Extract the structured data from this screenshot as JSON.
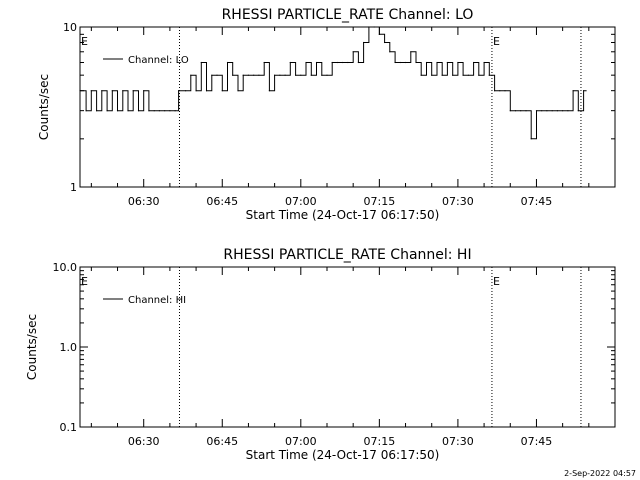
{
  "footer": {
    "date": "2-Sep-2022 04:57"
  },
  "chart_data": [
    {
      "type": "line",
      "title": "RHESSI PARTICLE_RATE Channel: LO",
      "xlabel": "Start Time (24-Oct-17 06:17:50)",
      "ylabel": "Counts/sec",
      "yscale": "log",
      "xlim": [
        "06:17:50",
        "08:00"
      ],
      "ylim": [
        1,
        10
      ],
      "x_ticks": [
        "06:30",
        "06:45",
        "07:00",
        "07:15",
        "07:30",
        "07:45"
      ],
      "y_ticks": [
        "1",
        "10"
      ],
      "legend": {
        "entries": [
          "Channel: LO"
        ],
        "position": "top-left"
      },
      "event_markers": [
        {
          "time": "06:36:50",
          "label": ""
        },
        {
          "time": "07:36:30",
          "label": "E"
        },
        {
          "time": "07:53:30",
          "label": ""
        }
      ],
      "start_marker": "E",
      "series": [
        {
          "name": "Channel: LO",
          "x": [
            "06:17:50",
            "06:19:00",
            "06:20:00",
            "06:21:00",
            "06:22:00",
            "06:23:00",
            "06:24:00",
            "06:25:00",
            "06:26:00",
            "06:27:00",
            "06:28:00",
            "06:29:00",
            "06:30:00",
            "06:31:00",
            "06:32:00",
            "06:33:00",
            "06:34:00",
            "06:35:00",
            "06:36:00",
            "06:36:40",
            "06:38:00",
            "06:39:00",
            "06:40:00",
            "06:41:00",
            "06:42:00",
            "06:43:00",
            "06:44:00",
            "06:45:00",
            "06:46:00",
            "06:47:00",
            "06:48:00",
            "06:49:00",
            "06:50:00",
            "06:51:00",
            "06:52:00",
            "06:53:00",
            "06:54:00",
            "06:55:00",
            "06:56:00",
            "06:57:00",
            "06:58:00",
            "06:59:00",
            "07:00:00",
            "07:01:00",
            "07:02:00",
            "07:03:00",
            "07:04:00",
            "07:05:00",
            "07:06:00",
            "07:07:00",
            "07:08:00",
            "07:09:00",
            "07:10:00",
            "07:11:00",
            "07:12:00",
            "07:13:00",
            "07:14:00",
            "07:15:00",
            "07:16:00",
            "07:17:00",
            "07:18:00",
            "07:19:00",
            "07:20:00",
            "07:21:00",
            "07:22:00",
            "07:23:00",
            "07:24:00",
            "07:25:00",
            "07:26:00",
            "07:27:00",
            "07:28:00",
            "07:29:00",
            "07:30:00",
            "07:31:00",
            "07:32:00",
            "07:33:00",
            "07:34:00",
            "07:35:00",
            "07:36:00",
            "07:37:00",
            "07:38:00",
            "07:39:00",
            "07:40:00",
            "07:41:00",
            "07:42:00",
            "07:43:00",
            "07:44:00",
            "07:45:00",
            "07:46:00",
            "07:47:00",
            "07:48:00",
            "07:49:00",
            "07:50:00",
            "07:51:00",
            "07:52:00",
            "07:53:00",
            "07:54:00"
          ],
          "values": [
            4,
            3,
            4,
            3,
            4,
            3,
            4,
            3,
            4,
            3,
            4,
            3,
            4,
            3,
            3,
            3,
            3,
            3,
            3,
            4,
            4,
            5,
            4,
            6,
            4,
            5,
            5,
            4,
            6,
            5,
            4,
            5,
            5,
            5,
            5,
            6,
            4,
            5,
            5,
            5,
            6,
            5,
            5,
            6,
            5,
            6,
            5,
            5,
            6,
            6,
            6,
            6,
            7,
            6,
            8,
            10,
            10,
            9,
            8,
            7,
            6,
            6,
            6,
            7,
            6,
            5,
            6,
            5,
            6,
            5,
            6,
            5,
            6,
            5,
            5,
            6,
            5,
            6,
            5,
            4,
            4,
            4,
            3,
            3,
            3,
            3,
            2,
            3,
            3,
            3,
            3,
            3,
            3,
            3,
            4,
            3,
            4
          ]
        }
      ]
    },
    {
      "type": "line",
      "title": "RHESSI PARTICLE_RATE Channel: HI",
      "xlabel": "Start Time (24-Oct-17 06:17:50)",
      "ylabel": "Counts/sec",
      "yscale": "log",
      "xlim": [
        "06:17:50",
        "08:00"
      ],
      "ylim": [
        0.1,
        10
      ],
      "x_ticks": [
        "06:30",
        "06:45",
        "07:00",
        "07:15",
        "07:30",
        "07:45"
      ],
      "y_ticks": [
        "0.1",
        "1.0",
        "10.0"
      ],
      "legend": {
        "entries": [
          "Channel: HI"
        ],
        "position": "top-left"
      },
      "event_markers": [
        {
          "time": "06:36:50",
          "label": ""
        },
        {
          "time": "07:36:30",
          "label": "E"
        },
        {
          "time": "07:53:30",
          "label": ""
        }
      ],
      "start_marker": "E",
      "series": [
        {
          "name": "Channel: HI",
          "x": [],
          "values": []
        }
      ]
    }
  ]
}
